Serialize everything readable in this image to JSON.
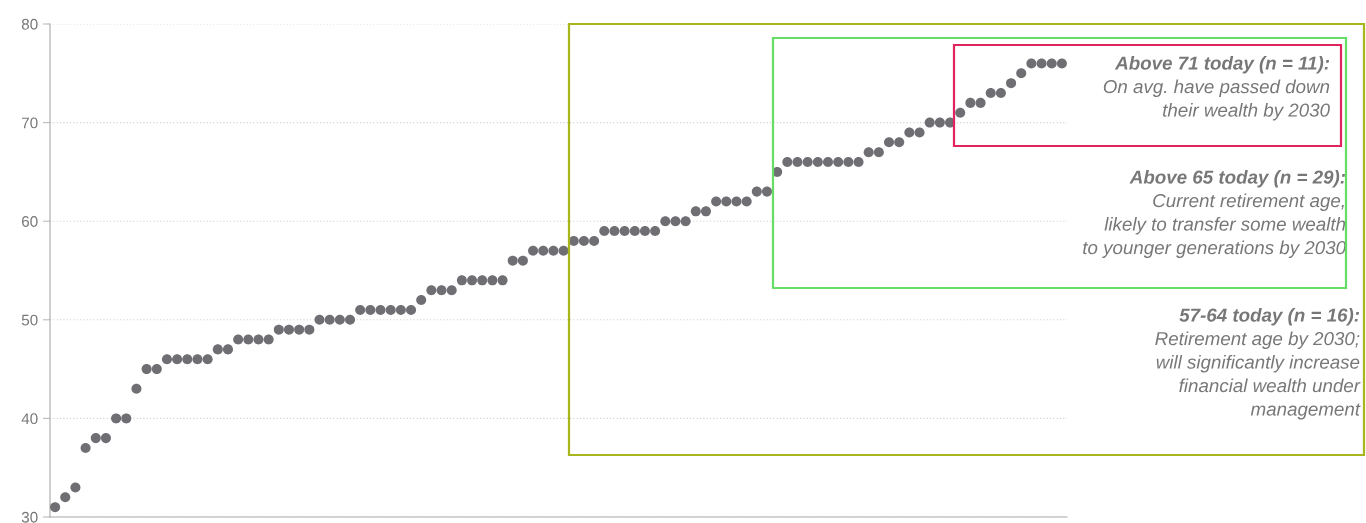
{
  "chart_data": {
    "type": "scatter",
    "categories": [
      null,
      null,
      null,
      null,
      null,
      null,
      null,
      null,
      null,
      null,
      null,
      null,
      null,
      null,
      null,
      null,
      null,
      null,
      null,
      null,
      null,
      null,
      null,
      null,
      null,
      null,
      null,
      null,
      null,
      null,
      null,
      null,
      null,
      null,
      null,
      null,
      null,
      null,
      null,
      null,
      null,
      null,
      null,
      null,
      null,
      null,
      null,
      null,
      null,
      null,
      null,
      null,
      null,
      null,
      null,
      null,
      null,
      null,
      null,
      null,
      null,
      null,
      null,
      null,
      null,
      null,
      null,
      null,
      null,
      null,
      null,
      null,
      null,
      null,
      null,
      null,
      null,
      null,
      null,
      null,
      null,
      null,
      null,
      null,
      null,
      null,
      null,
      null,
      null,
      null,
      null,
      null,
      null,
      null,
      null,
      null,
      null,
      null,
      null,
      null
    ],
    "series": [
      {
        "color": "#6e6e73",
        "values": [
          31,
          32,
          33,
          37,
          38,
          38,
          40,
          40,
          43,
          45,
          45,
          46,
          46,
          46,
          46,
          46,
          47,
          47,
          48,
          48,
          48,
          48,
          49,
          49,
          49,
          49,
          50,
          50,
          50,
          50,
          51,
          51,
          51,
          51,
          51,
          51,
          52,
          53,
          53,
          53,
          54,
          54,
          54,
          54,
          54,
          56,
          56,
          57,
          57,
          57,
          57,
          58,
          58,
          58,
          59,
          59,
          59,
          59,
          59,
          59,
          60,
          60,
          60,
          61,
          61,
          62,
          62,
          62,
          62,
          63,
          63,
          65,
          66,
          66,
          66,
          66,
          66,
          66,
          66,
          66,
          67,
          67,
          68,
          68,
          69,
          69,
          70,
          70,
          70,
          71,
          72,
          72,
          73,
          73,
          74,
          75,
          76,
          76,
          76,
          76
        ]
      }
    ],
    "marker": "circle",
    "ylim": [
      30,
      80
    ],
    "yticks": [
      30,
      40,
      50,
      60,
      70,
      80
    ],
    "grid": "y",
    "tick_labels": "y",
    "annotations": [
      "Above 71 today (n = 11):\nOn avg. have passed down\ntheir wealth by 2030",
      "Above 65 today (n = 29):\nCurrent retirement age,\nlikely to transfer some wealth\nto younger generations by 2030",
      "57-64 today (n = 16):\nRetirement age by 2030;\nwill significantly increase\nfinancial wealth under\nmanagement"
    ]
  }
}
